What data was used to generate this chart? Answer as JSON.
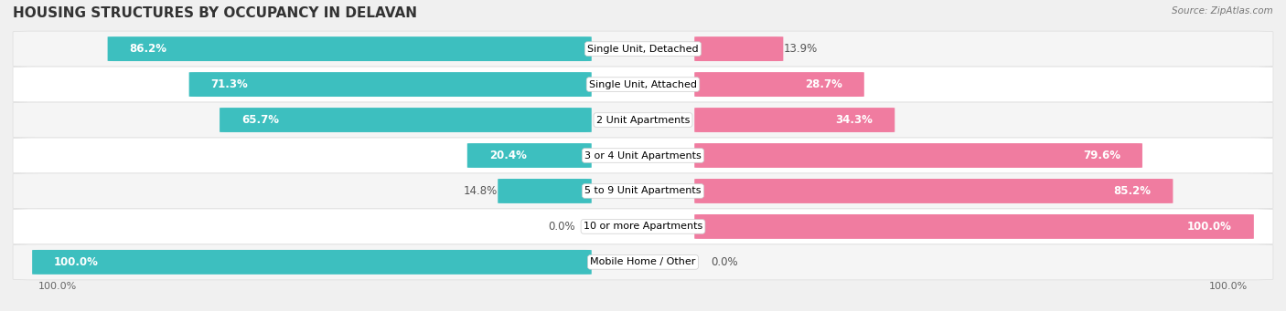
{
  "title": "HOUSING STRUCTURES BY OCCUPANCY IN DELAVAN",
  "source": "Source: ZipAtlas.com",
  "categories": [
    "Single Unit, Detached",
    "Single Unit, Attached",
    "2 Unit Apartments",
    "3 or 4 Unit Apartments",
    "5 to 9 Unit Apartments",
    "10 or more Apartments",
    "Mobile Home / Other"
  ],
  "owner_pct": [
    86.2,
    71.3,
    65.7,
    20.4,
    14.8,
    0.0,
    100.0
  ],
  "renter_pct": [
    13.9,
    28.7,
    34.3,
    79.6,
    85.2,
    100.0,
    0.0
  ],
  "owner_color": "#3DBFBF",
  "renter_color": "#F07CA0",
  "owner_color_light": "#A8DCDC",
  "renter_color_light": "#F7B8CE",
  "row_bg_even": "#f5f5f5",
  "row_bg_odd": "#ffffff",
  "background_color": "#f0f0f0",
  "title_fontsize": 11,
  "bar_label_fontsize": 8.5,
  "cat_label_fontsize": 8,
  "tick_fontsize": 8,
  "legend_fontsize": 8.5,
  "figsize": [
    14.06,
    3.41
  ],
  "dpi": 100
}
